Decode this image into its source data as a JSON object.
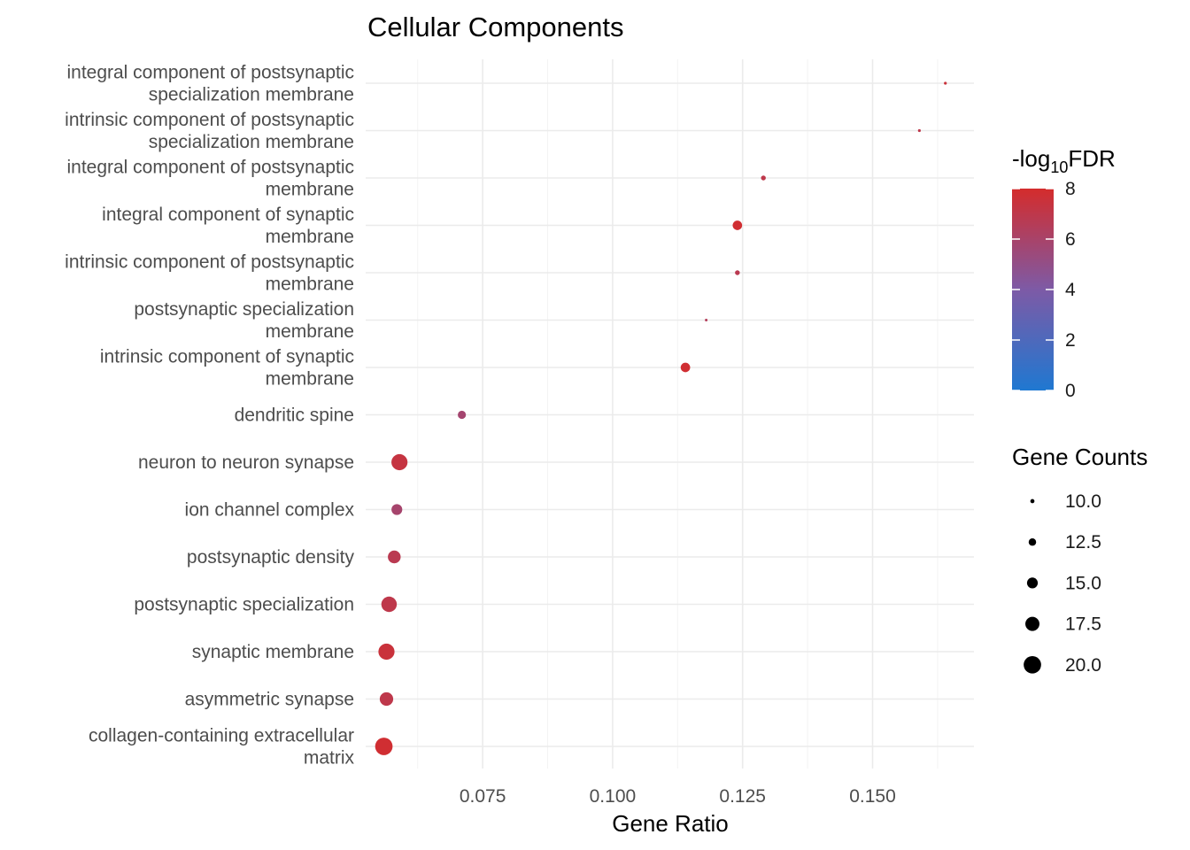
{
  "chart_data": {
    "type": "scatter",
    "title": "Cellular Components",
    "xlabel": "Gene Ratio",
    "ylabel": "",
    "xlim": [
      0.0525,
      0.1695
    ],
    "x_ticks": [
      0.075,
      0.1,
      0.125,
      0.15
    ],
    "x_tick_labels": [
      "0.075",
      "0.100",
      "0.125",
      "0.150"
    ],
    "points": [
      {
        "term": [
          "integral component of postsynaptic",
          "specialization membrane"
        ],
        "gene_ratio": 0.164,
        "gene_count": 9,
        "neg_log10_fdr": 7.5
      },
      {
        "term": [
          "intrinsic component of postsynaptic",
          "specialization membrane"
        ],
        "gene_ratio": 0.159,
        "gene_count": 9,
        "neg_log10_fdr": 7.0
      },
      {
        "term": [
          "integral component of postsynaptic",
          "membrane"
        ],
        "gene_ratio": 0.129,
        "gene_count": 10.5,
        "neg_log10_fdr": 7.0
      },
      {
        "term": [
          "integral component of synaptic",
          "membrane"
        ],
        "gene_ratio": 0.124,
        "gene_count": 14,
        "neg_log10_fdr": 7.8
      },
      {
        "term": [
          "intrinsic component of postsynaptic",
          "membrane"
        ],
        "gene_ratio": 0.124,
        "gene_count": 10.5,
        "neg_log10_fdr": 6.8
      },
      {
        "term": [
          "postsynaptic specialization",
          "membrane"
        ],
        "gene_ratio": 0.118,
        "gene_count": 8.5,
        "neg_log10_fdr": 6.5
      },
      {
        "term": [
          "intrinsic component of synaptic",
          "membrane"
        ],
        "gene_ratio": 0.114,
        "gene_count": 14,
        "neg_log10_fdr": 7.8
      },
      {
        "term": [
          "dendritic spine"
        ],
        "gene_ratio": 0.071,
        "gene_count": 13,
        "neg_log10_fdr": 5.8
      },
      {
        "term": [
          "neuron to neuron synapse"
        ],
        "gene_ratio": 0.059,
        "gene_count": 19,
        "neg_log10_fdr": 7.3
      },
      {
        "term": [
          "ion channel complex"
        ],
        "gene_ratio": 0.0585,
        "gene_count": 15,
        "neg_log10_fdr": 5.9
      },
      {
        "term": [
          "postsynaptic density"
        ],
        "gene_ratio": 0.058,
        "gene_count": 16.5,
        "neg_log10_fdr": 6.8
      },
      {
        "term": [
          "postsynaptic specialization"
        ],
        "gene_ratio": 0.057,
        "gene_count": 18.5,
        "neg_log10_fdr": 7.0
      },
      {
        "term": [
          "synaptic membrane"
        ],
        "gene_ratio": 0.0565,
        "gene_count": 19,
        "neg_log10_fdr": 7.5
      },
      {
        "term": [
          "asymmetric synapse"
        ],
        "gene_ratio": 0.0565,
        "gene_count": 17,
        "neg_log10_fdr": 7.0
      },
      {
        "term": [
          "collagen-containing extracellular",
          "matrix"
        ],
        "gene_ratio": 0.056,
        "gene_count": 20,
        "neg_log10_fdr": 7.8
      }
    ],
    "color_scale": {
      "title_prefix": "-log",
      "title_subscript": "10",
      "title_suffix": "FDR",
      "range": [
        0,
        8
      ],
      "breaks": [
        0,
        2,
        4,
        6,
        8
      ],
      "break_labels": [
        "0",
        "2",
        "4",
        "6",
        "8"
      ],
      "low_color": "#1f78d1",
      "mid_color": "#7d5aa6",
      "high_color": "#d42c2c"
    },
    "size_scale": {
      "title": "Gene Counts",
      "breaks": [
        10.0,
        12.5,
        15.0,
        17.5,
        20.0
      ],
      "break_labels": [
        "10.0",
        "12.5",
        "15.0",
        "17.5",
        "20.0"
      ]
    }
  }
}
